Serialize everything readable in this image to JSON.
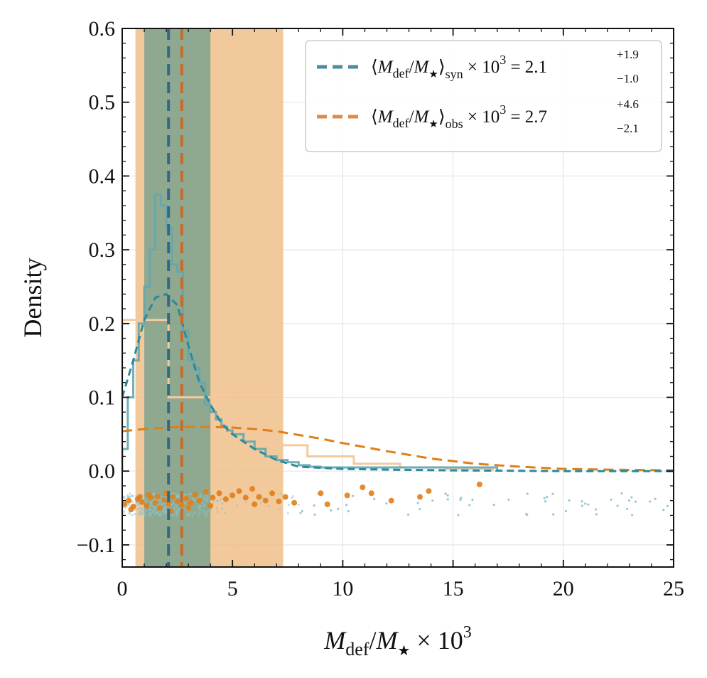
{
  "chart_data": {
    "type": "histogram-with-kde-and-scatter",
    "xlabel": "M_def/M_★ × 10^3",
    "ylabel": "Density",
    "xlim": [
      0,
      25
    ],
    "ylim": [
      -0.13,
      0.6
    ],
    "xticks": [
      0,
      5,
      10,
      15,
      20,
      25
    ],
    "xtick_labels": [
      "0",
      "5",
      "10",
      "15",
      "20",
      "25"
    ],
    "yticks": [
      -0.1,
      0.0,
      0.1,
      0.2,
      0.3,
      0.4,
      0.5,
      0.6
    ],
    "ytick_labels": [
      "−0.1",
      "0.0",
      "0.1",
      "0.2",
      "0.3",
      "0.4",
      "0.5",
      "0.6"
    ],
    "grid": true,
    "legend_position": "top-right",
    "colors": {
      "syn": "#2a8a9a",
      "syn_legend": "#4f89a6",
      "syn_hist": "#62a6b0",
      "syn_band": "#6e9e8c",
      "obs": "#e07e18",
      "obs_legend": "#d98c4e",
      "obs_hist": "#f4c9a0",
      "obs_band": "#f0c08a",
      "syn_scatter": "#8cc4cf",
      "syn_median_line": "#2f6b86",
      "obs_median_line": "#c96a2a"
    },
    "legend": [
      {
        "key": "syn",
        "prefix": "⟨M_def/M_★⟩_syn × 10^3 = 2.1",
        "sup": "+1.9",
        "sub": "−1.0"
      },
      {
        "key": "obs",
        "prefix": "⟨M_def/M_★⟩_obs × 10^3 = 2.7",
        "sup": "+4.6",
        "sub": "−2.1"
      }
    ],
    "series": [
      {
        "name": "syn",
        "median": 2.1,
        "err_plus": 1.9,
        "err_minus": 1.0,
        "band": [
          1.0,
          4.0
        ],
        "hist_edges": [
          0,
          0.25,
          0.5,
          0.75,
          1.0,
          1.25,
          1.5,
          1.75,
          2.0,
          2.25,
          2.5,
          2.75,
          3.0,
          3.25,
          3.5,
          3.75,
          4.0,
          4.25,
          4.5,
          4.75,
          5.0,
          5.5,
          6.0,
          6.5,
          7.0,
          7.5,
          8.0,
          8.5,
          9.0,
          9.5,
          10.0,
          17.0
        ],
        "hist_density": [
          0.03,
          0.1,
          0.15,
          0.2,
          0.25,
          0.3,
          0.375,
          0.36,
          0.33,
          0.28,
          0.27,
          0.19,
          0.15,
          0.14,
          0.12,
          0.09,
          0.08,
          0.07,
          0.06,
          0.055,
          0.05,
          0.04,
          0.03,
          0.02,
          0.015,
          0.012,
          0.008,
          0.006,
          0.005,
          0.005,
          0.005
        ],
        "kde_x": [
          0,
          0.5,
          1.0,
          1.5,
          2.0,
          2.5,
          3.0,
          3.5,
          4.0,
          4.5,
          5.0,
          6.0,
          7.0,
          8.0,
          10.0,
          12.0,
          15.0,
          20.0,
          25.0
        ],
        "kde_y": [
          0.1,
          0.15,
          0.205,
          0.235,
          0.24,
          0.225,
          0.17,
          0.12,
          0.09,
          0.065,
          0.05,
          0.03,
          0.015,
          0.006,
          0.003,
          0.002,
          0.001,
          0.0,
          0.0
        ],
        "scatter_y_range": [
          -0.06,
          -0.03
        ],
        "scatter_note": "individual values shown as jittered points below zero"
      },
      {
        "name": "obs",
        "median": 2.7,
        "err_plus": 4.6,
        "err_minus": 2.1,
        "band": [
          0.6,
          7.3
        ],
        "hist_edges": [
          0,
          2.1,
          4.2,
          6.3,
          8.4,
          10.5,
          12.6,
          14.7,
          16.8
        ],
        "hist_density": [
          0.205,
          0.1,
          0.055,
          0.035,
          0.02,
          0.01,
          0.005,
          0.003
        ],
        "kde_x": [
          0,
          1,
          2,
          3,
          4,
          5,
          6,
          7,
          8,
          9,
          10,
          12,
          14,
          16,
          18,
          20,
          22,
          25
        ],
        "kde_y": [
          0.054,
          0.057,
          0.059,
          0.06,
          0.06,
          0.059,
          0.057,
          0.054,
          0.049,
          0.044,
          0.038,
          0.027,
          0.017,
          0.01,
          0.006,
          0.003,
          0.002,
          0.001
        ],
        "scatter_points": [
          [
            0.1,
            -0.045
          ],
          [
            0.3,
            -0.04
          ],
          [
            0.5,
            -0.048
          ],
          [
            0.7,
            -0.038
          ],
          [
            0.9,
            -0.042
          ],
          [
            1.1,
            -0.047
          ],
          [
            1.3,
            -0.036
          ],
          [
            1.5,
            -0.043
          ],
          [
            1.7,
            -0.05
          ],
          [
            1.9,
            -0.039
          ],
          [
            2.1,
            -0.044
          ],
          [
            2.3,
            -0.035
          ],
          [
            2.5,
            -0.041
          ],
          [
            2.7,
            -0.046
          ],
          [
            2.9,
            -0.037
          ],
          [
            3.1,
            -0.043
          ],
          [
            3.3,
            -0.032
          ],
          [
            3.5,
            -0.04
          ],
          [
            3.8,
            -0.028
          ],
          [
            4.1,
            -0.036
          ],
          [
            4.4,
            -0.03
          ],
          [
            4.7,
            -0.038
          ],
          [
            5.0,
            -0.033
          ],
          [
            5.3,
            -0.027
          ],
          [
            5.6,
            -0.036
          ],
          [
            5.9,
            -0.024
          ],
          [
            6.2,
            -0.035
          ],
          [
            6.5,
            -0.04
          ],
          [
            6.8,
            -0.03
          ],
          [
            7.1,
            -0.041
          ],
          [
            7.4,
            -0.035
          ],
          [
            7.8,
            -0.043
          ],
          [
            9.0,
            -0.03
          ],
          [
            9.3,
            -0.045
          ],
          [
            10.2,
            -0.033
          ],
          [
            10.9,
            -0.022
          ],
          [
            11.3,
            -0.03
          ],
          [
            12.2,
            -0.04
          ],
          [
            13.5,
            -0.035
          ],
          [
            13.9,
            -0.027
          ],
          [
            16.2,
            -0.018
          ],
          [
            2.0,
            -0.03
          ],
          [
            1.2,
            -0.032
          ],
          [
            0.4,
            -0.052
          ],
          [
            6.0,
            -0.045
          ],
          [
            4.0,
            -0.047
          ],
          [
            3.0,
            -0.05
          ],
          [
            2.2,
            -0.054
          ],
          [
            1.6,
            -0.034
          ],
          [
            0.8,
            -0.035
          ]
        ]
      }
    ]
  }
}
